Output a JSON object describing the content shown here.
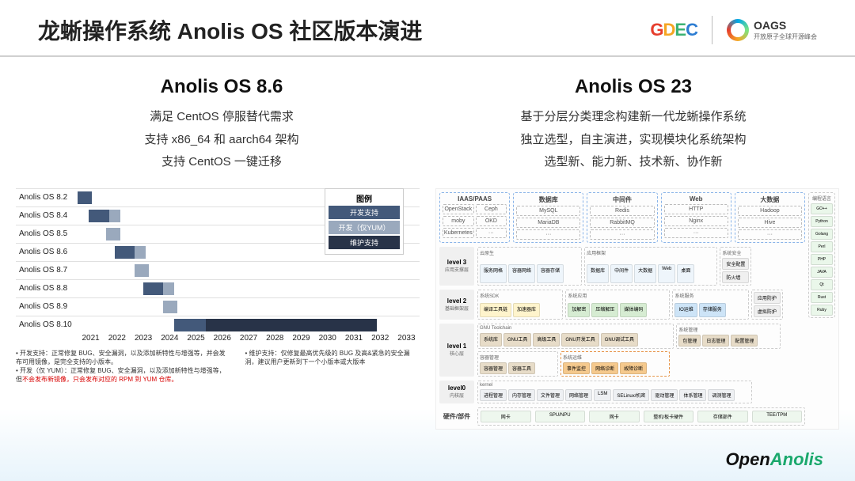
{
  "header": {
    "title": "龙蜥操作系统 Anolis OS 社区版本演进",
    "gdec": "GDEC",
    "oags_title": "OAGS",
    "oags_sub": "开放原子全球开源峰会"
  },
  "left_col": {
    "title": "Anolis OS 8.6",
    "lines": [
      "满足 CentOS 停服替代需求",
      "支持 x86_64 和 aarch64 架构",
      "支持 CentOS 一键迁移"
    ]
  },
  "right_col": {
    "title": "Anolis OS 23",
    "lines": [
      "基于分层分类理念构建新一代龙蜥操作系统",
      "独立选型，自主演进，实现模块化系统架构",
      "选型新、能力新、技术新、协作新"
    ]
  },
  "gantt": {
    "year_start": 2021,
    "year_end": 2033,
    "years": [
      "2021",
      "2022",
      "2023",
      "2024",
      "2025",
      "2026",
      "2027",
      "2028",
      "2029",
      "2030",
      "2031",
      "2032",
      "2033"
    ],
    "rows": [
      {
        "label": "Anolis OS 8.2",
        "bars": [
          {
            "start": 2021.0,
            "end": 2021.5,
            "color": "#43597a"
          }
        ]
      },
      {
        "label": "Anolis OS 8.4",
        "bars": [
          {
            "start": 2021.4,
            "end": 2022.1,
            "color": "#43597a"
          },
          {
            "start": 2022.1,
            "end": 2022.5,
            "color": "#9aa9bd"
          }
        ]
      },
      {
        "label": "Anolis OS 8.5",
        "bars": [
          {
            "start": 2022.0,
            "end": 2022.5,
            "color": "#9aa9bd"
          }
        ]
      },
      {
        "label": "Anolis OS 8.6",
        "bars": [
          {
            "start": 2022.3,
            "end": 2023.0,
            "color": "#43597a"
          },
          {
            "start": 2023.0,
            "end": 2023.4,
            "color": "#9aa9bd"
          }
        ]
      },
      {
        "label": "Anolis OS 8.7",
        "bars": [
          {
            "start": 2023.0,
            "end": 2023.5,
            "color": "#9aa9bd"
          }
        ]
      },
      {
        "label": "Anolis OS 8.8",
        "bars": [
          {
            "start": 2023.3,
            "end": 2024.0,
            "color": "#43597a"
          },
          {
            "start": 2024.0,
            "end": 2024.4,
            "color": "#9aa9bd"
          }
        ]
      },
      {
        "label": "Anolis OS 8.9",
        "bars": [
          {
            "start": 2024.0,
            "end": 2024.5,
            "color": "#9aa9bd"
          }
        ]
      },
      {
        "label": "Anolis OS 8.10",
        "bars": [
          {
            "start": 2024.4,
            "end": 2025.5,
            "color": "#43597a"
          },
          {
            "start": 2025.5,
            "end": 2031.5,
            "color": "#283348"
          }
        ]
      }
    ],
    "legend": {
      "title": "图例",
      "items": [
        {
          "label": "开发支持",
          "color": "#43597a"
        },
        {
          "label": "开发（仅YUM）",
          "color": "#9aa9bd"
        },
        {
          "label": "维护支持",
          "color": "#283348"
        }
      ]
    },
    "footnotes": {
      "left": [
        "开发支持：正常修复 BUG、安全漏洞，以及添加新特性与增强等，并会发布可用镜像，是完全支持的小版本。",
        "开发（仅 YUM）：正常修复 BUG、安全漏洞，以及添加新特性与增强等，但"
      ],
      "red": "不会发布新镜像，只会发布对应的 RPM 到 YUM 仓库。",
      "right": "维护支持：仅修复最高优先级的 BUG 及高&紧急的安全漏洞，建议用户更新到下一个小版本或大版本"
    }
  },
  "arch": {
    "top_groups": [
      {
        "title": "IAAS/PAAS",
        "items": [
          "OpenStack",
          "Ceph",
          "moby",
          "OKD",
          "Kubernetes",
          "···"
        ],
        "cols": 2
      },
      {
        "title": "数据库",
        "items": [
          "MySQL",
          "MariaDB",
          "···"
        ],
        "cols": 1
      },
      {
        "title": "中间件",
        "items": [
          "Redis",
          "RabbitMQ",
          "···"
        ],
        "cols": 1
      },
      {
        "title": "Web",
        "items": [
          "HTTP",
          "Nginx",
          "···"
        ],
        "cols": 1
      },
      {
        "title": "大数据",
        "items": [
          "Hadoop",
          "Hive",
          "···"
        ],
        "cols": 1
      }
    ],
    "levels": [
      {
        "name": "level 3",
        "sub": "应用支撑层",
        "groups": [
          {
            "title": "云原生",
            "boxes": [
              {
                "t": "服务网格",
                "c": "#eef5fb"
              },
              {
                "t": "容器网络",
                "c": "#eef5fb"
              },
              {
                "t": "容器存储",
                "c": "#eef5fb"
              }
            ]
          },
          {
            "title": "应用框架",
            "boxes": [
              {
                "t": "数据库",
                "c": "#eef5fb"
              },
              {
                "t": "中间件",
                "c": "#eef5fb"
              },
              {
                "t": "大数据",
                "c": "#eef5fb"
              },
              {
                "t": "Web",
                "c": "#eef5fb"
              },
              {
                "t": "桌面",
                "c": "#eef5fb"
              }
            ]
          }
        ]
      },
      {
        "name": "level 2",
        "sub": "基础框架层",
        "groups": [
          {
            "title": "系统SDK",
            "boxes": [
              {
                "t": "编译工具链",
                "c": "#fff4cc"
              },
              {
                "t": "加速器库",
                "c": "#fff4cc"
              }
            ]
          },
          {
            "title": "系统应用",
            "boxes": [
              {
                "t": "加解密",
                "c": "#d6ecd2"
              },
              {
                "t": "压缩解压",
                "c": "#d6ecd2"
              },
              {
                "t": "媒体编码",
                "c": "#d6ecd2"
              }
            ]
          },
          {
            "title": "系统服务",
            "boxes": [
              {
                "t": "IO运维",
                "c": "#cde4f7"
              },
              {
                "t": "存储服务",
                "c": "#cde4f7"
              }
            ]
          }
        ]
      },
      {
        "name": "level 1",
        "sub": "核心层",
        "groups": [
          {
            "title": "GNU Toolchain",
            "boxes": [
              {
                "t": "系统库",
                "c": "#e7dcc8"
              },
              {
                "t": "GNU工具",
                "c": "#e7dcc8"
              },
              {
                "t": "高级工具",
                "c": "#e7dcc8"
              },
              {
                "t": "GNU开发工具",
                "c": "#e7dcc8"
              },
              {
                "t": "GNU调试工具",
                "c": "#e7dcc8"
              }
            ]
          },
          {
            "title": "系统管理",
            "boxes": [
              {
                "t": "包管理",
                "c": "#e7dcc8"
              },
              {
                "t": "日志管理",
                "c": "#e7dcc8"
              },
              {
                "t": "配置管理",
                "c": "#e7dcc8"
              }
            ]
          },
          {
            "title": "容器管理",
            "boxes": [
              {
                "t": "容器管理",
                "c": "#e7dcc8"
              },
              {
                "t": "容器工具",
                "c": "#e7dcc8"
              }
            ]
          },
          {
            "title": "系统运维",
            "boxes": [
              {
                "t": "事件监控",
                "c": "#f5c98d"
              },
              {
                "t": "网络诊断",
                "c": "#f5c98d"
              },
              {
                "t": "故障诊断",
                "c": "#f5c98d"
              }
            ],
            "hl": true
          }
        ]
      },
      {
        "name": "level0",
        "sub": "内核层",
        "groups": [
          {
            "title": "kernel",
            "boxes": [
              {
                "t": "进程管理",
                "c": "#eef0f3"
              },
              {
                "t": "内存管理",
                "c": "#eef0f3"
              },
              {
                "t": "文件管理",
                "c": "#eef0f3"
              },
              {
                "t": "网络管理",
                "c": "#eef0f3"
              },
              {
                "t": "LSM",
                "c": "#eef0f3"
              },
              {
                "t": "SELinux/机密",
                "c": "#eef0f3"
              },
              {
                "t": "驱动管理",
                "c": "#eef0f3"
              },
              {
                "t": "体系管理",
                "c": "#eef0f3"
              },
              {
                "t": "调测管理",
                "c": "#eef0f3"
              }
            ]
          }
        ]
      }
    ],
    "side": {
      "title": "编程语言",
      "items": [
        "GO++",
        "Python",
        "Golang",
        "Perl",
        "PHP",
        "JAVA",
        "Qt",
        "Rust",
        "Ruby"
      ],
      "color": "#eaf7ea"
    },
    "side2": {
      "title": "系统安全",
      "items": [
        "安全配置",
        "防火墙",
        "应用防护",
        "虚拟防护"
      ],
      "color": "#f0f0f0"
    },
    "hardware": {
      "label": "硬件/部件",
      "items": [
        "网卡",
        "SPU/NPU",
        "网卡",
        "整机/板卡硬件",
        "存储部件",
        "TEE/TPM"
      ],
      "color": "#eef7ee"
    }
  },
  "footer": {
    "open": "Open",
    "anolis": "Anolis"
  }
}
